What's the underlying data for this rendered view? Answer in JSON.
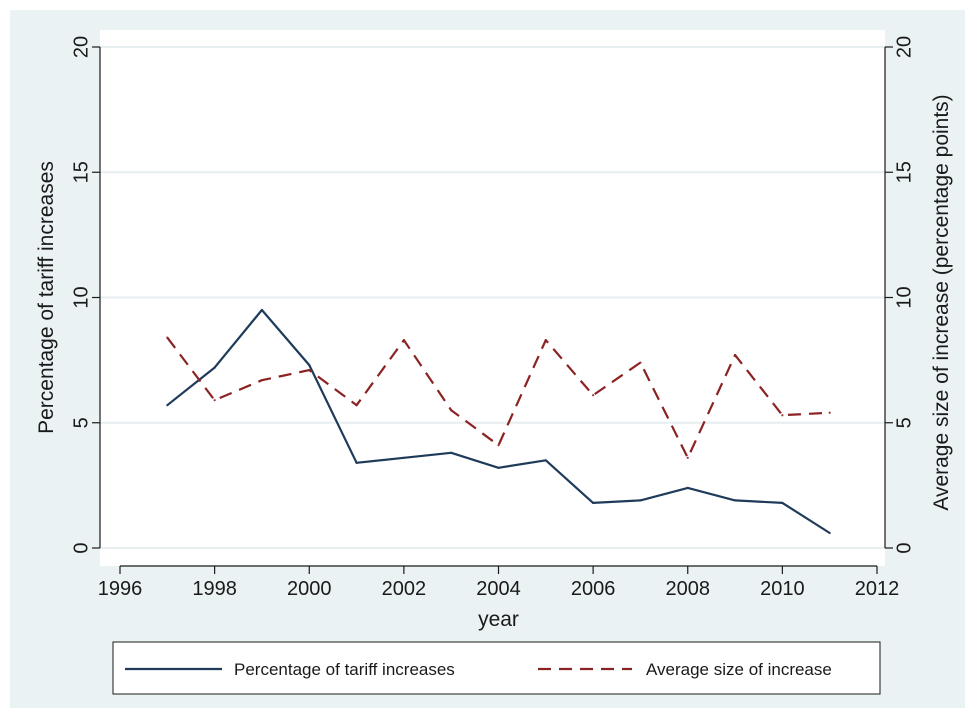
{
  "chart_data": {
    "type": "line",
    "x": [
      1997,
      1998,
      1999,
      2000,
      2001,
      2002,
      2003,
      2004,
      2005,
      2006,
      2007,
      2008,
      2009,
      2010,
      2011
    ],
    "series": [
      {
        "name": "Percentage of tariff increases",
        "axis": "left",
        "color": "#1f3b5a",
        "style": "solid",
        "values": [
          5.7,
          7.2,
          9.5,
          7.3,
          3.4,
          3.6,
          3.8,
          3.2,
          3.5,
          1.8,
          1.9,
          2.4,
          1.9,
          1.8,
          0.6
        ]
      },
      {
        "name": "Average size of increase",
        "axis": "right",
        "color": "#8b2323",
        "style": "dashed",
        "values": [
          8.4,
          5.9,
          6.7,
          7.1,
          5.7,
          8.3,
          5.5,
          4.1,
          8.3,
          6.1,
          7.4,
          3.6,
          7.7,
          5.3,
          5.4
        ]
      }
    ],
    "xlabel": "year",
    "ylabel": "Percentage of tariff increases",
    "y2label": "Average size of increase (percentage points)",
    "xlim": [
      1996,
      2012
    ],
    "ylim": [
      0,
      20
    ],
    "y2lim": [
      0,
      20
    ],
    "xticks": [
      "1996",
      "1998",
      "2000",
      "2002",
      "2004",
      "2006",
      "2008",
      "2010",
      "2012"
    ],
    "yticks": [
      "0",
      "5",
      "10",
      "15",
      "20"
    ],
    "y2ticks": [
      "0",
      "5",
      "10",
      "15",
      "20"
    ],
    "grid": true,
    "legend_placement": "bottom"
  },
  "colors": {
    "background": "#eaf2f3",
    "plot_area": "#ffffff",
    "grid": "#e6eef0"
  }
}
